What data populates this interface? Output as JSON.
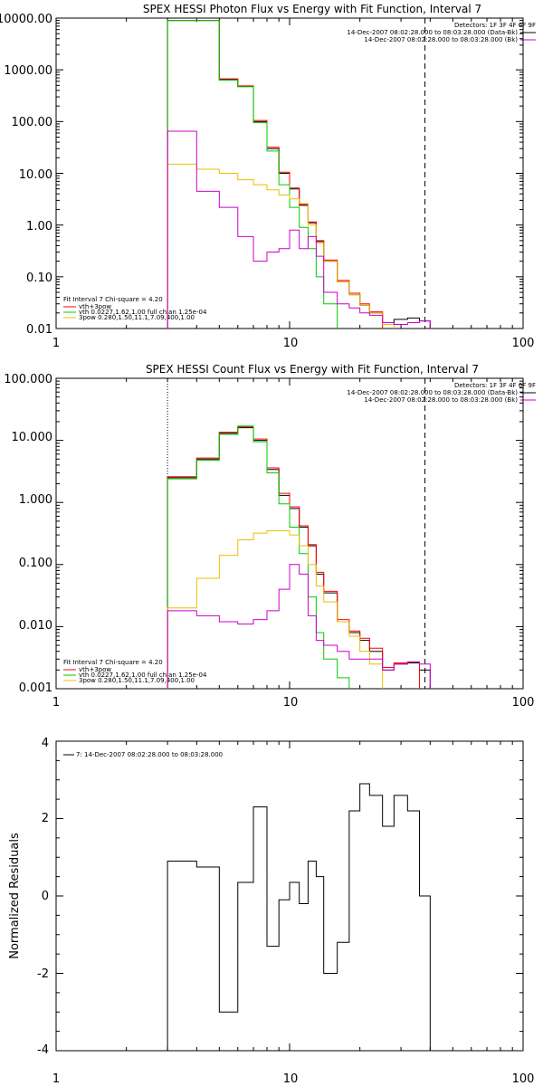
{
  "figure": {
    "background": "#ffffff",
    "colors": {
      "black": "#000000",
      "red": "#ff0000",
      "green": "#00cc00",
      "magenta": "#cc00cc",
      "yellow": "#e8c000"
    }
  },
  "chart_data": [
    {
      "type": "line",
      "title": "SPEX HESSI Photon Flux vs Energy with Fit Function, Interval 7",
      "xlabel": "",
      "ylabel": "",
      "xscale": "log",
      "yscale": "log",
      "xlim": [
        1,
        100
      ],
      "ylim": [
        0.01,
        10000
      ],
      "x_ticks": [
        1,
        10,
        100
      ],
      "x_tick_labels": [
        "1",
        "10",
        "100"
      ],
      "y_ticks": [
        0.01,
        0.1,
        1,
        10,
        100,
        1000,
        10000
      ],
      "y_tick_labels": [
        "0.01",
        "0.10",
        "1.00",
        "10.00",
        "100.00",
        "1000.00",
        "10000.00"
      ],
      "vlines": [
        {
          "x": 3,
          "style": "dotted"
        },
        {
          "x": 38,
          "style": "dashed"
        }
      ],
      "bin_edges": [
        3,
        4,
        5,
        6,
        7,
        8,
        9,
        10,
        11,
        12,
        13,
        14,
        16,
        18,
        20,
        22,
        25,
        28,
        32,
        36,
        40
      ],
      "legend_topright": {
        "header": "Detectors: 1F 3F 4F 6F 9F",
        "entries": [
          {
            "label": "14-Dec-2007 08:02:28.000 to 08:03:28.000 (Data-Bk)",
            "color": "#000000"
          },
          {
            "label": "14-Dec-2007 08:02:28.000 to 08:03:28.000 (Bk)",
            "color": "#cc00cc"
          }
        ]
      },
      "legend_bottomleft": {
        "header": "Fit Interval 7    Chi-square = 4.20",
        "entries": [
          {
            "label": "vth+3pow",
            "color": "#ff0000"
          },
          {
            "label": "vth 0.0227,1.62,1.00  full chian 1.25e-04",
            "color": "#00cc00"
          },
          {
            "label": "3pow 0.280,1.50,11.1,7.09,400,1.00",
            "color": "#e8c000"
          }
        ]
      },
      "series": [
        {
          "color": "#000000",
          "values": [
            9000,
            9000,
            650,
            480,
            100,
            30,
            10,
            5,
            2.4,
            1.1,
            0.48,
            0.2,
            0.08,
            0.045,
            0.028,
            0.02,
            0.012,
            0.015,
            0.016,
            0.014
          ]
        },
        {
          "color": "#ff0000",
          "values": [
            9000,
            9000,
            670,
            490,
            105,
            32,
            10.5,
            5.2,
            2.5,
            1.15,
            0.5,
            0.21,
            0.085,
            0.048,
            0.03,
            0.021,
            null,
            null,
            null,
            null
          ]
        },
        {
          "color": "#00cc00",
          "values": [
            9000,
            9000,
            630,
            470,
            95,
            27,
            6,
            2.2,
            0.9,
            0.35,
            0.1,
            0.03,
            0.008,
            null,
            null,
            null,
            null,
            null,
            null,
            null
          ]
        },
        {
          "color": "#e8c000",
          "values": [
            15,
            12,
            10,
            7.5,
            6,
            4.8,
            3.8,
            3.2,
            2.6,
            1.0,
            0.45,
            0.2,
            0.08,
            0.045,
            0.028,
            0.02,
            0.012,
            0.009,
            null,
            null
          ]
        },
        {
          "color": "#cc00cc",
          "values": [
            65,
            4.5,
            2.2,
            0.6,
            0.2,
            0.3,
            0.35,
            0.8,
            0.35,
            0.6,
            0.25,
            0.05,
            0.03,
            0.025,
            0.02,
            0.018,
            0.013,
            0.012,
            0.013,
            0.014
          ]
        }
      ]
    },
    {
      "type": "line",
      "title": "SPEX HESSI Count Flux vs Energy with Fit Function, Interval 7",
      "xlabel": "",
      "ylabel": "",
      "xscale": "log",
      "yscale": "log",
      "xlim": [
        1,
        100
      ],
      "ylim": [
        0.001,
        100
      ],
      "x_ticks": [
        1,
        10,
        100
      ],
      "x_tick_labels": [
        "1",
        "10",
        "100"
      ],
      "y_ticks": [
        0.001,
        0.01,
        0.1,
        1,
        10,
        100
      ],
      "y_tick_labels": [
        "0.001",
        "0.010",
        "0.100",
        "1.000",
        "10.000",
        "100.000"
      ],
      "vlines": [
        {
          "x": 3,
          "style": "dotted"
        },
        {
          "x": 38,
          "style": "dashed"
        }
      ],
      "bin_edges": [
        3,
        4,
        5,
        6,
        7,
        8,
        9,
        10,
        11,
        12,
        13,
        14,
        16,
        18,
        20,
        22,
        25,
        28,
        32,
        36,
        40
      ],
      "legend_topright": {
        "header": "Detectors: 1F 3F 4F 6F 9F",
        "entries": [
          {
            "label": "14-Dec-2007 08:02:28.000 to 08:03:28.000 (Data-Bk)",
            "color": "#000000"
          },
          {
            "label": "14-Dec-2007 08:02:28.000 to 08:03:28.000 (Bk)",
            "color": "#cc00cc"
          }
        ]
      },
      "legend_bottomleft": {
        "header": "Fit Interval 7    Chi-square = 4.20",
        "entries": [
          {
            "label": "vth+3pow",
            "color": "#ff0000"
          },
          {
            "label": "vth 0.0227,1.62,1.00  full chian 1.25e-04",
            "color": "#00cc00"
          },
          {
            "label": "3pow 0.280,1.50,11.1,7.09,400,1.00",
            "color": "#e8c000"
          }
        ]
      },
      "series": [
        {
          "color": "#000000",
          "values": [
            2.5,
            5,
            13,
            16,
            10,
            3.4,
            1.3,
            0.8,
            0.4,
            0.2,
            0.07,
            0.035,
            0.012,
            0.008,
            0.006,
            0.004,
            0.002,
            0.0025,
            0.0026,
            0.002
          ]
        },
        {
          "color": "#ff0000",
          "values": [
            2.6,
            5.2,
            13.5,
            16.5,
            10.5,
            3.6,
            1.4,
            0.85,
            0.42,
            0.21,
            0.075,
            0.037,
            0.013,
            0.0085,
            0.0065,
            0.0045,
            0.0022,
            0.0026,
            0.0027,
            null
          ]
        },
        {
          "color": "#00cc00",
          "values": [
            2.4,
            4.8,
            12.5,
            17,
            9.5,
            3,
            0.95,
            0.4,
            0.15,
            0.03,
            0.008,
            0.003,
            0.0015,
            0.0005,
            null,
            null,
            null,
            null,
            null,
            null
          ]
        },
        {
          "color": "#e8c000",
          "values": [
            0.02,
            0.06,
            0.14,
            0.25,
            0.32,
            0.35,
            0.35,
            0.3,
            0.2,
            0.1,
            0.045,
            0.025,
            0.012,
            0.007,
            0.004,
            0.0025,
            null,
            null,
            null,
            null
          ]
        },
        {
          "color": "#cc00cc",
          "values": [
            0.018,
            0.015,
            0.012,
            0.011,
            0.013,
            0.018,
            0.04,
            0.1,
            0.07,
            0.015,
            0.006,
            0.005,
            0.004,
            0.003,
            0.003,
            0.003,
            0.002,
            0.0025,
            0.0027,
            0.0025
          ]
        }
      ]
    },
    {
      "type": "line",
      "title": "",
      "xlabel": "",
      "ylabel": "Normalized Residuals",
      "xscale": "log",
      "yscale": "linear",
      "xlim": [
        1,
        100
      ],
      "ylim": [
        -4,
        4
      ],
      "x_ticks": [
        1,
        10,
        100
      ],
      "x_tick_labels": [
        "1",
        "10",
        "100"
      ],
      "y_ticks": [
        -4,
        -2,
        0,
        2,
        4
      ],
      "y_tick_labels": [
        "-4",
        "-2",
        "0",
        "2",
        "4"
      ],
      "bin_edges": [
        3,
        4,
        5,
        6,
        7,
        8,
        9,
        10,
        11,
        12,
        13,
        14,
        16,
        18,
        20,
        22,
        25,
        28,
        32,
        36,
        40
      ],
      "legend_topleft": {
        "entries": [
          {
            "label": "7: 14-Dec-2007 08:02:28.000 to 08:03:28.000",
            "color": "#000000"
          }
        ]
      },
      "series": [
        {
          "color": "#000000",
          "values": [
            0.9,
            0.75,
            -3.0,
            0.35,
            2.3,
            -1.3,
            -0.1,
            0.35,
            -0.2,
            0.9,
            0.5,
            -2.0,
            -1.2,
            2.2,
            2.9,
            2.6,
            1.8,
            2.6,
            2.2,
            0
          ]
        }
      ]
    }
  ]
}
